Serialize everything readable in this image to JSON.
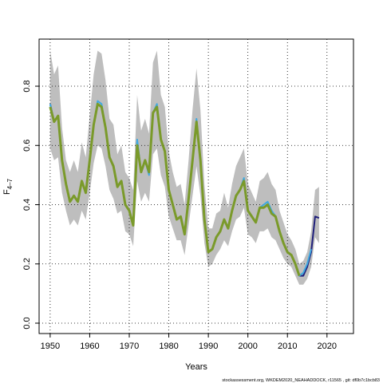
{
  "chart_data": {
    "type": "line",
    "xlabel": "Years",
    "ylabel": "F",
    "ylabel_sub": "4–7",
    "footer": "stockassessment.org, WKDEM2020_NEAHADDOCK, r11565 , git: df0b7c1bcb83",
    "x": [
      1950,
      1951,
      1952,
      1953,
      1954,
      1955,
      1956,
      1957,
      1958,
      1959,
      1960,
      1961,
      1962,
      1963,
      1964,
      1965,
      1966,
      1967,
      1968,
      1969,
      1970,
      1971,
      1972,
      1973,
      1974,
      1975,
      1976,
      1977,
      1978,
      1979,
      1980,
      1981,
      1982,
      1983,
      1984,
      1985,
      1986,
      1987,
      1988,
      1989,
      1990,
      1991,
      1992,
      1993,
      1994,
      1995,
      1996,
      1997,
      1998,
      1999,
      2000,
      2001,
      2002,
      2003,
      2004,
      2005,
      2006,
      2007,
      2008,
      2009,
      2010,
      2011,
      2012,
      2013,
      2014,
      2015,
      2016,
      2017,
      2018
    ],
    "band": {
      "color": "#bebebe",
      "upper": [
        0.92,
        0.84,
        0.87,
        0.66,
        0.55,
        0.51,
        0.55,
        0.51,
        0.61,
        0.56,
        0.7,
        0.84,
        0.92,
        0.91,
        0.82,
        0.69,
        0.67,
        0.57,
        0.6,
        0.51,
        0.49,
        0.45,
        0.77,
        0.65,
        0.69,
        0.64,
        0.88,
        0.92,
        0.77,
        0.73,
        0.58,
        0.51,
        0.46,
        0.47,
        0.4,
        0.55,
        0.72,
        0.86,
        0.72,
        0.47,
        0.32,
        0.32,
        0.37,
        0.38,
        0.44,
        0.39,
        0.47,
        0.53,
        0.56,
        0.59,
        0.47,
        0.44,
        0.41,
        0.48,
        0.49,
        0.51,
        0.47,
        0.45,
        0.38,
        0.34,
        0.3,
        0.28,
        0.25,
        0.2,
        0.21,
        0.24,
        0.31,
        0.45,
        0.46
      ],
      "lower": [
        0.59,
        0.55,
        0.56,
        0.44,
        0.38,
        0.33,
        0.35,
        0.33,
        0.38,
        0.35,
        0.44,
        0.54,
        0.6,
        0.59,
        0.53,
        0.45,
        0.42,
        0.37,
        0.38,
        0.31,
        0.3,
        0.26,
        0.48,
        0.41,
        0.44,
        0.41,
        0.57,
        0.59,
        0.5,
        0.46,
        0.36,
        0.32,
        0.28,
        0.28,
        0.23,
        0.33,
        0.43,
        0.53,
        0.43,
        0.27,
        0.19,
        0.2,
        0.23,
        0.25,
        0.28,
        0.26,
        0.31,
        0.35,
        0.36,
        0.39,
        0.3,
        0.29,
        0.27,
        0.31,
        0.31,
        0.32,
        0.29,
        0.28,
        0.25,
        0.22,
        0.2,
        0.19,
        0.16,
        0.13,
        0.13,
        0.15,
        0.19,
        0.29,
        0.27
      ]
    },
    "series": [
      {
        "color": "#1f1f7a",
        "width": 2,
        "values": [
          0.74,
          0.68,
          0.7,
          0.55,
          0.47,
          0.41,
          0.43,
          0.41,
          0.48,
          0.44,
          0.55,
          0.67,
          0.74,
          0.73,
          0.66,
          0.56,
          0.53,
          0.46,
          0.48,
          0.4,
          0.38,
          0.33,
          0.61,
          0.51,
          0.55,
          0.51,
          0.71,
          0.73,
          0.62,
          0.58,
          0.45,
          0.4,
          0.35,
          0.36,
          0.3,
          0.42,
          0.55,
          0.68,
          0.55,
          0.35,
          0.24,
          0.25,
          0.29,
          0.31,
          0.35,
          0.32,
          0.38,
          0.43,
          0.45,
          0.48,
          0.38,
          0.36,
          0.34,
          0.39,
          0.39,
          0.4,
          0.37,
          0.36,
          0.31,
          0.27,
          0.24,
          0.23,
          0.2,
          0.16,
          0.16,
          0.19,
          0.24,
          0.36,
          0.355
        ]
      },
      {
        "color": "#3fa9e0",
        "width": 2,
        "values": [
          0.74,
          0.68,
          0.7,
          0.55,
          0.47,
          0.41,
          0.43,
          0.41,
          0.48,
          0.44,
          0.55,
          0.67,
          0.75,
          0.74,
          0.66,
          0.56,
          0.53,
          0.46,
          0.48,
          0.4,
          0.38,
          0.33,
          0.62,
          0.51,
          0.55,
          0.5,
          0.71,
          0.74,
          0.62,
          0.58,
          0.45,
          0.4,
          0.35,
          0.36,
          0.3,
          0.42,
          0.55,
          0.69,
          0.55,
          0.35,
          0.24,
          0.25,
          0.29,
          0.31,
          0.35,
          0.32,
          0.38,
          0.43,
          0.45,
          0.49,
          0.38,
          0.36,
          0.34,
          0.39,
          0.4,
          0.41,
          0.38,
          0.36,
          0.31,
          0.27,
          0.24,
          0.23,
          0.2,
          0.16,
          0.17,
          0.2,
          0.25,
          null,
          null
        ]
      },
      {
        "color": "#7a9a2a",
        "width": 3,
        "values": [
          0.73,
          0.68,
          0.7,
          0.55,
          0.47,
          0.41,
          0.43,
          0.41,
          0.48,
          0.44,
          0.55,
          0.67,
          0.74,
          0.73,
          0.66,
          0.56,
          0.53,
          0.46,
          0.48,
          0.4,
          0.38,
          0.33,
          0.6,
          0.51,
          0.55,
          0.51,
          0.71,
          0.73,
          0.62,
          0.58,
          0.45,
          0.4,
          0.35,
          0.36,
          0.3,
          0.42,
          0.55,
          0.68,
          0.55,
          0.35,
          0.24,
          0.25,
          0.29,
          0.31,
          0.35,
          0.32,
          0.38,
          0.43,
          0.45,
          0.48,
          0.38,
          0.36,
          0.34,
          0.39,
          0.39,
          0.4,
          0.37,
          0.36,
          0.31,
          0.27,
          0.24,
          0.23,
          0.2,
          0.16,
          null,
          null,
          null,
          null,
          null
        ]
      }
    ],
    "xlim": [
      1947.2,
      2026.7
    ],
    "xticks": [
      1950,
      1960,
      1970,
      1980,
      1990,
      2000,
      2010,
      2020
    ],
    "ylim": [
      -0.035,
      0.959
    ],
    "yticks": [
      {
        "value": 0,
        "label": "0.0"
      },
      0.2,
      0.4,
      0.6,
      0.8
    ],
    "grid": true
  }
}
